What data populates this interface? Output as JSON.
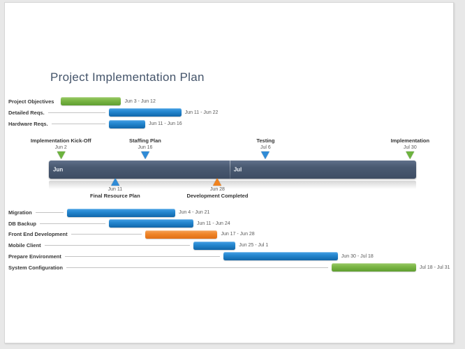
{
  "chart_data": {
    "type": "gantt",
    "title": "Project Implementation Plan",
    "axis": {
      "months": [
        {
          "label": "Jun",
          "days": 30
        },
        {
          "label": "Jul",
          "days": 31
        }
      ]
    },
    "tasks_above": [
      {
        "label": "Project Objectives",
        "start": "Jun 3",
        "end": "Jun 12",
        "dates": "Jun 3 - Jun 12",
        "color": "green"
      },
      {
        "label": "Detailed Reqs.",
        "start": "Jun 11",
        "end": "Jun 22",
        "dates": "Jun 11 - Jun 22",
        "color": "blue"
      },
      {
        "label": "Hardware Reqs.",
        "start": "Jun 11",
        "end": "Jun 16",
        "dates": "Jun 11 - Jun 16",
        "color": "blue"
      }
    ],
    "tasks_below": [
      {
        "label": "Migration",
        "start": "Jun 4",
        "end": "Jun 21",
        "dates": "Jun 4 - Jun 21",
        "color": "blue"
      },
      {
        "label": "DB Backup",
        "start": "Jun 11",
        "end": "Jun 24",
        "dates": "Jun 11 - Jun 24",
        "color": "blue"
      },
      {
        "label": "Front End Development",
        "start": "Jun 17",
        "end": "Jun 28",
        "dates": "Jun 17 - Jun 28",
        "color": "orange"
      },
      {
        "label": "Mobile Client",
        "start": "Jun 25",
        "end": "Jul 1",
        "dates": "Jun 25 - Jul 1",
        "color": "blue"
      },
      {
        "label": "Prepare Environment",
        "start": "Jun 30",
        "end": "Jul 18",
        "dates": "Jun 30 - Jul 18",
        "color": "blue"
      },
      {
        "label": "System Configuration",
        "start": "Jul 18",
        "end": "Jul 31",
        "dates": "Jul 18 - Jul 31",
        "color": "green"
      }
    ],
    "milestones_above": [
      {
        "label": "Implementation Kick-Off",
        "date": "Jun 2",
        "color": "green"
      },
      {
        "label": "Staffing Plan",
        "date": "Jun 16",
        "color": "blue"
      },
      {
        "label": "Testing",
        "date": "Jul 6",
        "color": "blue"
      },
      {
        "label": "Implementation",
        "date": "Jul 30",
        "color": "green"
      }
    ],
    "milestones_below": [
      {
        "label": "Final Resource Plan",
        "date": "Jun 11",
        "color": "blue"
      },
      {
        "label": "Development Completed",
        "date": "Jun 28",
        "color": "orange"
      }
    ],
    "colors": {
      "green": "#6fae3e",
      "blue": "#2286cd",
      "orange": "#ee7d23",
      "band": "#47566c",
      "title": "#44546a"
    }
  }
}
